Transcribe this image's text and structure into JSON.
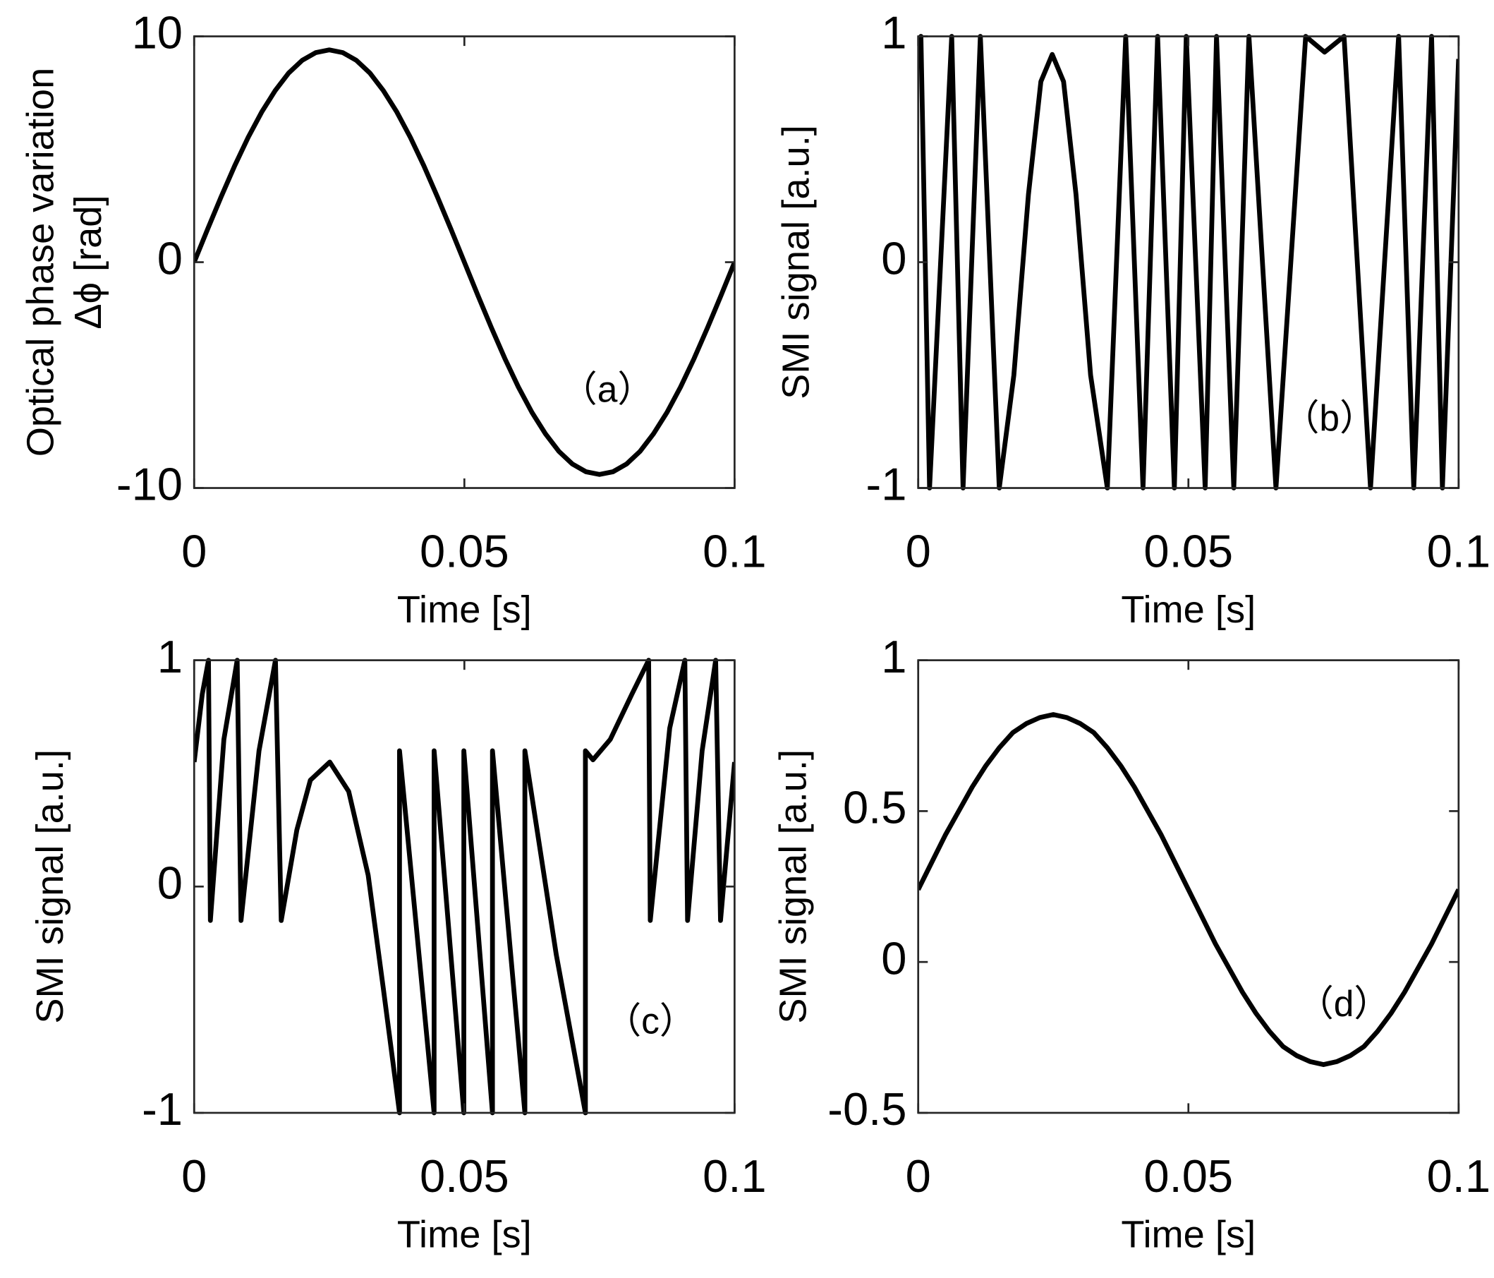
{
  "chart_data": [
    {
      "type": "line",
      "xlabel": "Time [s]",
      "ylabel": [
        "Optical phase variation",
        "Δϕ [rad]"
      ],
      "annotation": "（a）",
      "color": "#000000",
      "xlim": [
        0,
        0.1
      ],
      "xticks": [
        0,
        0.05,
        0.1
      ],
      "ylim": [
        -10,
        10
      ],
      "yticks": [
        -10,
        0,
        10
      ],
      "x": [
        0,
        0.0025,
        0.005,
        0.0075,
        0.01,
        0.0125,
        0.015,
        0.0175,
        0.02,
        0.0225,
        0.025,
        0.0275,
        0.03,
        0.0325,
        0.035,
        0.0375,
        0.04,
        0.0425,
        0.045,
        0.0475,
        0.05,
        0.0525,
        0.055,
        0.0575,
        0.06,
        0.0625,
        0.065,
        0.0675,
        0.07,
        0.0725,
        0.075,
        0.0775,
        0.08,
        0.0825,
        0.085,
        0.0875,
        0.09,
        0.0925,
        0.095,
        0.0975,
        0.1
      ],
      "values": [
        0,
        1.47,
        2.9,
        4.27,
        5.53,
        6.65,
        7.6,
        8.38,
        8.94,
        9.28,
        9.4,
        9.28,
        8.94,
        8.38,
        7.6,
        6.65,
        5.53,
        4.27,
        2.9,
        1.47,
        0,
        -1.47,
        -2.9,
        -4.27,
        -5.53,
        -6.65,
        -7.6,
        -8.38,
        -8.94,
        -9.28,
        -9.4,
        -9.28,
        -8.94,
        -8.38,
        -7.6,
        -6.65,
        -5.53,
        -4.27,
        -2.9,
        -1.47,
        0
      ]
    },
    {
      "type": "line",
      "xlabel": "Time [s]",
      "ylabel": [
        "SMI signal [a.u.]"
      ],
      "annotation": "（b）",
      "color": "#000000",
      "xlim": [
        0,
        0.1
      ],
      "xticks": [
        0,
        0.05,
        0.1
      ],
      "ylim": [
        -1,
        1
      ],
      "yticks": [
        -1,
        0,
        1
      ],
      "x": [
        0,
        0.0005,
        0.0021,
        0.0062,
        0.0083,
        0.0115,
        0.015,
        0.0177,
        0.0204,
        0.0227,
        0.0248,
        0.0269,
        0.0292,
        0.0319,
        0.035,
        0.0384,
        0.0416,
        0.0443,
        0.0474,
        0.0496,
        0.0531,
        0.0552,
        0.0584,
        0.0612,
        0.0662,
        0.0717,
        0.0752,
        0.0788,
        0.0837,
        0.0889,
        0.0917,
        0.095,
        0.097,
        0.1
      ],
      "values": [
        0.95,
        1,
        -1,
        1,
        -1,
        1,
        -1,
        -0.5,
        0.3,
        0.8,
        0.92,
        0.8,
        0.3,
        -0.5,
        -1,
        1,
        -1,
        1,
        -1,
        1,
        -1,
        1,
        -1,
        1,
        -1,
        1,
        0.93,
        1,
        -1,
        1,
        -1,
        1,
        -1,
        0.9
      ]
    },
    {
      "type": "line",
      "xlabel": "Time [s]",
      "ylabel": [
        "SMI signal [a.u.]"
      ],
      "annotation": "（c）",
      "color": "#000000",
      "xlim": [
        0,
        0.1
      ],
      "xticks": [
        0,
        0.05,
        0.1
      ],
      "ylim": [
        -1,
        1
      ],
      "yticks": [
        -1,
        0,
        1
      ],
      "x": [
        0,
        0.0015,
        0.00265,
        0.003,
        0.0055,
        0.00796,
        0.00867,
        0.012,
        0.01504,
        0.01611,
        0.019,
        0.0215,
        0.0251,
        0.0286,
        0.0322,
        0.035,
        0.038,
        0.038,
        0.0444,
        0.0444,
        0.0499,
        0.0499,
        0.0552,
        0.0552,
        0.0612,
        0.0612,
        0.067,
        0.0724,
        0.0724,
        0.0738,
        0.077,
        0.081,
        0.0841,
        0.0844,
        0.088,
        0.0908,
        0.0913,
        0.094,
        0.0965,
        0.0974,
        0.1
      ],
      "values": [
        0.55,
        0.85,
        1,
        -0.15,
        0.65,
        1,
        -0.15,
        0.6,
        1,
        -0.15,
        0.25,
        0.47,
        0.55,
        0.42,
        0.05,
        -0.45,
        -1,
        0.6,
        -1,
        0.6,
        -1,
        0.6,
        -1,
        0.6,
        -1,
        0.6,
        -0.3,
        -1,
        0.6,
        0.56,
        0.65,
        0.85,
        1,
        -0.15,
        0.7,
        1,
        -0.15,
        0.6,
        1,
        -0.15,
        0.55
      ]
    },
    {
      "type": "line",
      "xlabel": "Time [s]",
      "ylabel": [
        "SMI signal [a.u.]"
      ],
      "annotation": "（d）",
      "color": "#000000",
      "xlim": [
        0,
        0.1
      ],
      "xticks": [
        0,
        0.05,
        0.1
      ],
      "ylim": [
        -0.5,
        1
      ],
      "yticks": [
        -0.5,
        0,
        0.5,
        1
      ],
      "x": [
        0,
        0.0025,
        0.005,
        0.0075,
        0.01,
        0.0125,
        0.015,
        0.0175,
        0.02,
        0.0225,
        0.025,
        0.0275,
        0.03,
        0.0325,
        0.035,
        0.0375,
        0.04,
        0.0425,
        0.045,
        0.0475,
        0.05,
        0.0525,
        0.055,
        0.0575,
        0.06,
        0.0625,
        0.065,
        0.0675,
        0.07,
        0.0725,
        0.075,
        0.0775,
        0.08,
        0.0825,
        0.085,
        0.0875,
        0.09,
        0.0925,
        0.095,
        0.0975,
        0.1
      ],
      "values": [
        0.24,
        0.33,
        0.42,
        0.5,
        0.58,
        0.65,
        0.71,
        0.76,
        0.79,
        0.81,
        0.82,
        0.81,
        0.79,
        0.76,
        0.71,
        0.65,
        0.58,
        0.5,
        0.42,
        0.33,
        0.24,
        0.15,
        0.06,
        -0.02,
        -0.1,
        -0.17,
        -0.23,
        -0.28,
        -0.31,
        -0.33,
        -0.34,
        -0.33,
        -0.31,
        -0.28,
        -0.23,
        -0.17,
        -0.1,
        -0.02,
        0.06,
        0.15,
        0.24
      ]
    }
  ]
}
